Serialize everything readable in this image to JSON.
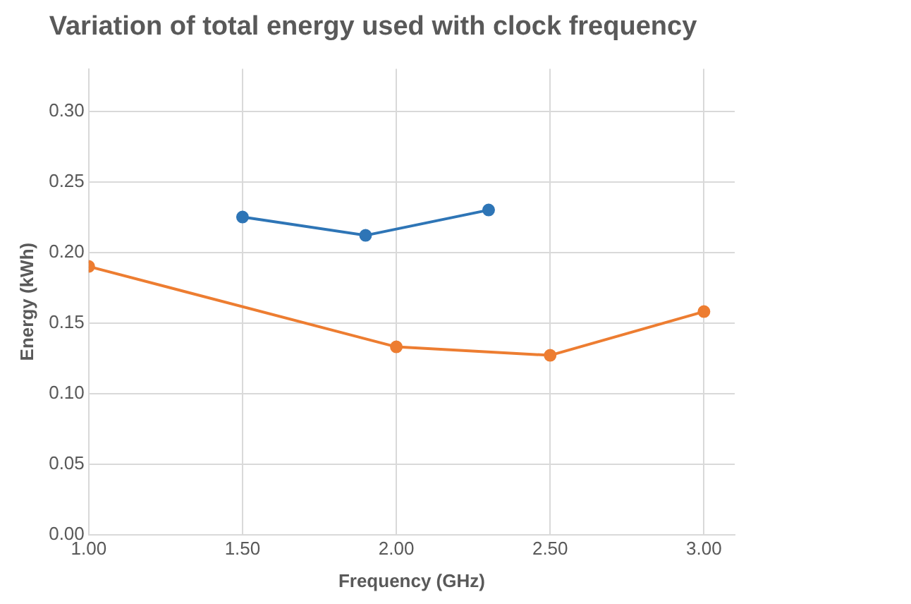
{
  "chart_data": {
    "type": "line",
    "title": "Variation of total energy used with clock frequency",
    "xlabel": "Frequency (GHz)",
    "ylabel": "Energy (kWh)",
    "series": [
      {
        "color": "#2e75b6",
        "x": [
          1.5,
          1.9,
          2.3
        ],
        "values": [
          0.225,
          0.212,
          0.23
        ]
      },
      {
        "color": "#ed7d31",
        "x": [
          1.0,
          2.0,
          2.5,
          3.0
        ],
        "values": [
          0.19,
          0.133,
          0.127,
          0.158
        ]
      }
    ],
    "xlim": [
      1.0,
      3.1
    ],
    "xticks": [
      {
        "value": 1,
        "label": "1.00"
      },
      {
        "value": 1.5,
        "label": "1.50"
      },
      {
        "value": 2,
        "label": "2.00"
      },
      {
        "value": 2.5,
        "label": "2.50"
      },
      {
        "value": 3,
        "label": "3.00"
      }
    ],
    "ylim": [
      0,
      0.33
    ],
    "yticks": [
      {
        "value": 0,
        "label": "0.00"
      },
      {
        "value": 0.05,
        "label": "0.05"
      },
      {
        "value": 0.1,
        "label": "0.10"
      },
      {
        "value": 0.15,
        "label": "0.15"
      },
      {
        "value": 0.2,
        "label": "0.20"
      },
      {
        "value": 0.25,
        "label": "0.25"
      },
      {
        "value": 0.3,
        "label": "0.30"
      }
    ],
    "grid": true,
    "marker": "circle",
    "line_style": "solid"
  }
}
